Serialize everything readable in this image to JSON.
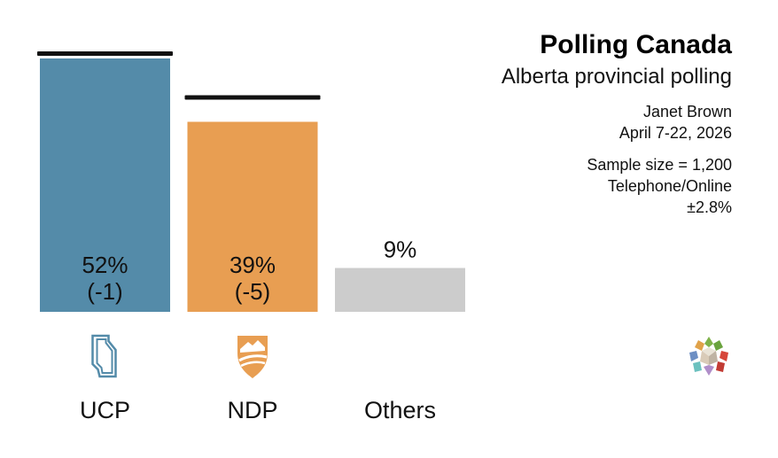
{
  "header": {
    "title": "Polling Canada",
    "subtitle": "Alberta provincial polling",
    "pollster": "Janet Brown",
    "dates": "April 7-22, 2026",
    "sample": "Sample size = 1,200",
    "method": "Telephone/Online",
    "margin": "±2.8%"
  },
  "chart_data": {
    "type": "bar",
    "categories": [
      "UCP",
      "NDP",
      "Others"
    ],
    "values": [
      52,
      39,
      9
    ],
    "value_labels": [
      "52%",
      "39%",
      "9%"
    ],
    "change_labels": [
      "(-1)",
      "(-5)",
      ""
    ],
    "previous_values": [
      53,
      44,
      null
    ],
    "colors": [
      "#548ba9",
      "#e89e52",
      "#cccccc"
    ],
    "party_icons": [
      "ucp-logo-icon",
      "ndp-logo-icon",
      ""
    ],
    "ylim": [
      0,
      56
    ],
    "grid": false,
    "legend": "none",
    "title": "",
    "xlabel": "",
    "ylabel": ""
  },
  "branding": {
    "icon": "polling-canada-logo-icon"
  }
}
